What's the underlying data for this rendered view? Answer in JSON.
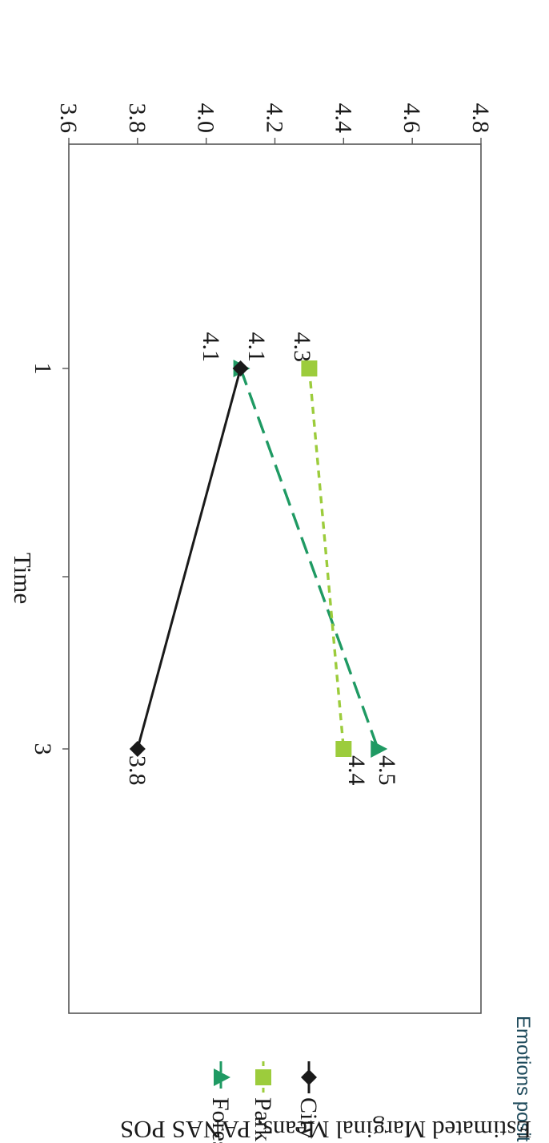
{
  "chart_data": {
    "type": "line",
    "title": "Emotions positives",
    "xlabel": "Time",
    "ylabel": "Estimated Marginal Means, PANAS POS",
    "categories": [
      "1",
      "3"
    ],
    "ylim": [
      3.6,
      4.8
    ],
    "yticks": [
      "4.8",
      "4.6",
      "4.4",
      "4.2",
      "4.0",
      "3.8",
      "3.6"
    ],
    "grid": false,
    "legend_position": "right",
    "series": [
      {
        "name": "Forest",
        "values": [
          4.1,
          4.5
        ],
        "labels": [
          "4.1",
          "4.5"
        ],
        "color": "#1f9a63",
        "marker": "triangle",
        "dash": "long-dash"
      },
      {
        "name": "Park",
        "values": [
          4.3,
          4.4
        ],
        "labels": [
          "4.3",
          "4.4"
        ],
        "color": "#9ccc3c",
        "marker": "square",
        "dash": "short-dash"
      },
      {
        "name": "City",
        "values": [
          4.1,
          3.8
        ],
        "labels": [
          "4.1",
          "3.8"
        ],
        "color": "#1a1a1a",
        "marker": "diamond",
        "dash": "solid"
      }
    ]
  }
}
